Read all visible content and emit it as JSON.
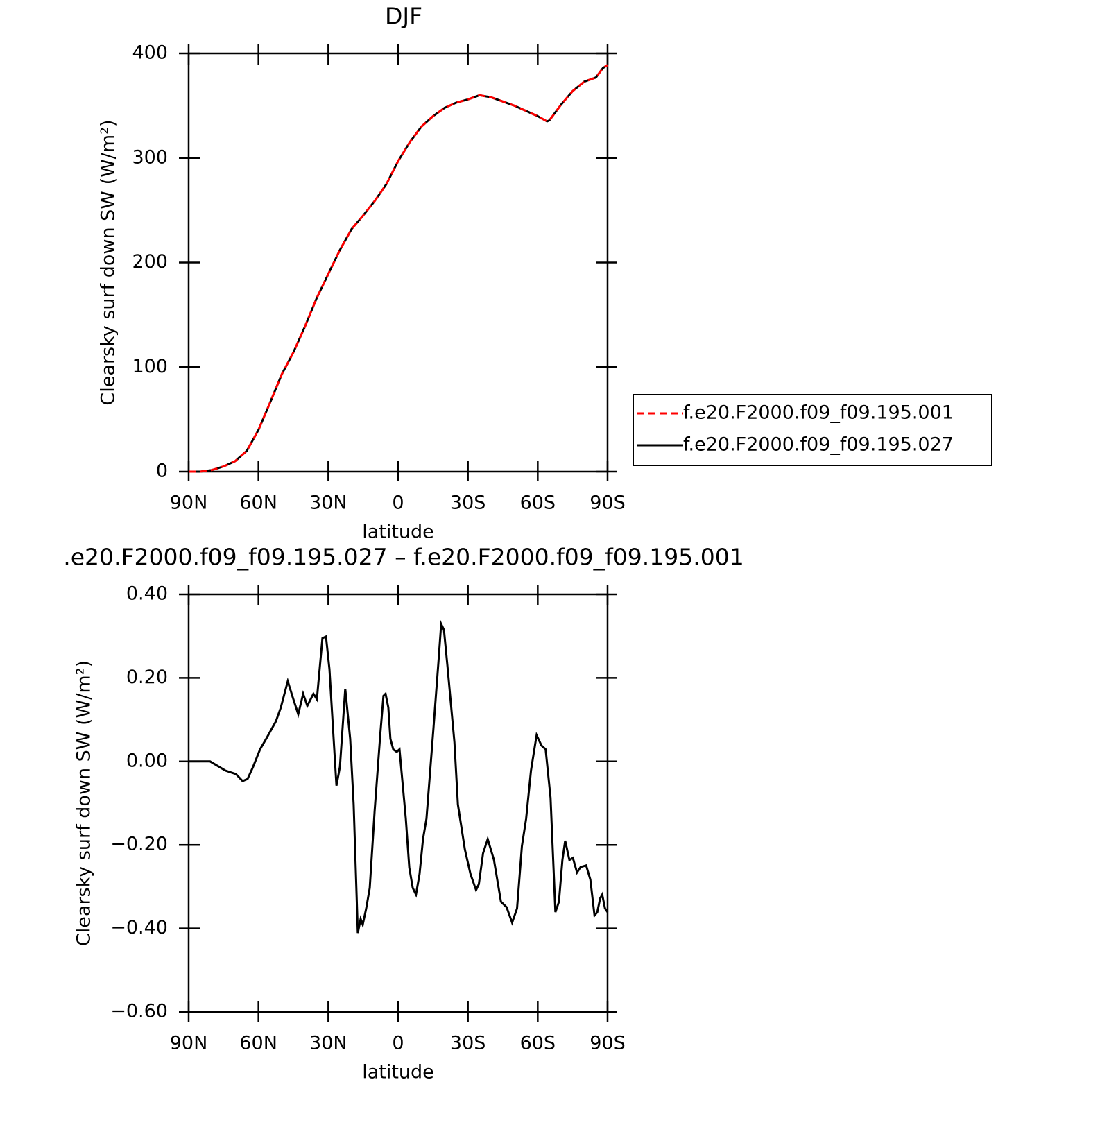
{
  "chart_data": [
    {
      "type": "line",
      "title": "DJF",
      "x_label": "latitude",
      "y_label": "Clearsky surf down SW (W/m²)",
      "x": [
        90,
        85,
        80,
        75,
        70,
        65,
        60,
        55,
        50,
        45,
        40,
        35,
        30,
        25,
        20,
        15,
        10,
        5,
        0,
        -5,
        -10,
        -15,
        -20,
        -25,
        -30,
        -35,
        -40,
        -45,
        -50,
        -55,
        -60,
        -64,
        -65,
        -70,
        -75,
        -80,
        -85,
        -88,
        -90
      ],
      "series": [
        {
          "name": "f.e20.F2000.f09_f09.195.001",
          "color": "#ff0000",
          "dashed": true,
          "values": [
            0,
            0,
            1.5,
            5,
            10,
            20,
            40,
            66,
            93,
            114,
            139,
            166,
            189,
            212,
            232,
            245,
            259,
            275,
            297,
            315,
            330,
            340,
            348,
            353,
            356,
            360,
            358,
            354,
            350,
            345,
            340,
            335,
            336,
            351,
            364,
            373,
            377,
            386,
            389
          ]
        },
        {
          "name": "f.e20.F2000.f09_f09.195.027",
          "color": "#000000",
          "dashed": false,
          "values": [
            0,
            0,
            1.5,
            5,
            10,
            20,
            40,
            66,
            93,
            114,
            139,
            166,
            189,
            212,
            232,
            245,
            259,
            275,
            297,
            315,
            330,
            340,
            348,
            353,
            356,
            360,
            358,
            354,
            350,
            345,
            340,
            335,
            336,
            351,
            364,
            373,
            377,
            386,
            389
          ]
        }
      ],
      "xlim": [
        90,
        -90
      ],
      "xticks": [
        {
          "value": 90,
          "label": "90N"
        },
        {
          "value": 60,
          "label": "60N"
        },
        {
          "value": 30,
          "label": "30N"
        },
        0,
        {
          "value": -30,
          "label": "30S"
        },
        {
          "value": -60,
          "label": "60S"
        },
        {
          "value": -90,
          "label": "90S"
        }
      ],
      "ylim": [
        0,
        400
      ],
      "yticks": [
        0,
        100,
        200,
        300,
        400
      ],
      "legend": "right"
    },
    {
      "type": "line",
      "title": ".e20.F2000.f09_f09.195.027 – f.e20.F2000.f09_f09.195.001",
      "x_label": "latitude",
      "y_label": "Clearsky surf down SW (W/m²)",
      "x": [
        90,
        80.8,
        74.2,
        69.7,
        66.8,
        64.7,
        62.3,
        59.3,
        56.3,
        52.5,
        50.4,
        47.4,
        45.3,
        42.9,
        40.8,
        39,
        36.4,
        34.9,
        32.5,
        31,
        29.5,
        26.5,
        25,
        22.7,
        20.6,
        19.1,
        17.3,
        16.1,
        15.2,
        13.7,
        12.2,
        10.1,
        7.7,
        6.3,
        5.4,
        4.2,
        3.3,
        2.1,
        0.6,
        -0.6,
        -3.3,
        -4.8,
        -6.3,
        -7.7,
        -9.2,
        -10.7,
        -12.2,
        -15.2,
        -17.3,
        -18.5,
        -19.7,
        -21.2,
        -24.2,
        -25.7,
        -28.7,
        -31.1,
        -33.5,
        -34.7,
        -36.5,
        -38.5,
        -41.2,
        -44.2,
        -46.6,
        -49,
        -51.1,
        -53.2,
        -55,
        -57.1,
        -59.5,
        -61.6,
        -63.4,
        -65.5,
        -67.6,
        -69.1,
        -70.6,
        -71.8,
        -73.6,
        -75.1,
        -76.9,
        -78.4,
        -80.8,
        -82.6,
        -84.4,
        -85.6,
        -86.8,
        -87.7,
        -88.9,
        -90
      ],
      "series": [
        {
          "color": "#000000",
          "dashed": false,
          "values": [
            0,
            0,
            -0.022,
            -0.03,
            -0.047,
            -0.042,
            -0.013,
            0.029,
            0.058,
            0.096,
            0.129,
            0.192,
            0.154,
            0.113,
            0.162,
            0.133,
            0.162,
            0.149,
            0.295,
            0.299,
            0.221,
            -0.058,
            -0.013,
            0.174,
            0.054,
            -0.103,
            -0.411,
            -0.377,
            -0.391,
            -0.352,
            -0.303,
            -0.12,
            0.063,
            0.157,
            0.162,
            0.129,
            0.054,
            0.029,
            0.023,
            0.029,
            -0.137,
            -0.254,
            -0.303,
            -0.319,
            -0.27,
            -0.186,
            -0.137,
            0.08,
            0.237,
            0.329,
            0.315,
            0.229,
            0.046,
            -0.103,
            -0.211,
            -0.27,
            -0.308,
            -0.294,
            -0.22,
            -0.186,
            -0.236,
            -0.336,
            -0.349,
            -0.386,
            -0.352,
            -0.203,
            -0.137,
            -0.022,
            0.063,
            0.038,
            0.029,
            -0.087,
            -0.361,
            -0.336,
            -0.236,
            -0.19,
            -0.236,
            -0.231,
            -0.266,
            -0.253,
            -0.249,
            -0.283,
            -0.369,
            -0.361,
            -0.328,
            -0.319,
            -0.352,
            -0.361
          ]
        }
      ],
      "xlim": [
        90,
        -90
      ],
      "xticks": [
        {
          "value": 90,
          "label": "90N"
        },
        {
          "value": 60,
          "label": "60N"
        },
        {
          "value": 30,
          "label": "30N"
        },
        0,
        {
          "value": -30,
          "label": "30S"
        },
        {
          "value": -60,
          "label": "60S"
        },
        {
          "value": -90,
          "label": "90S"
        }
      ],
      "ylim": [
        -0.6,
        0.4
      ],
      "yticks": [
        {
          "value": -0.6,
          "label": "−0.60"
        },
        {
          "value": -0.4,
          "label": "−0.40"
        },
        {
          "value": -0.2,
          "label": "−0.20"
        },
        {
          "value": 0,
          "label": "0.00"
        },
        {
          "value": 0.2,
          "label": "0.20"
        },
        {
          "value": 0.4,
          "label": "0.40"
        }
      ]
    }
  ]
}
